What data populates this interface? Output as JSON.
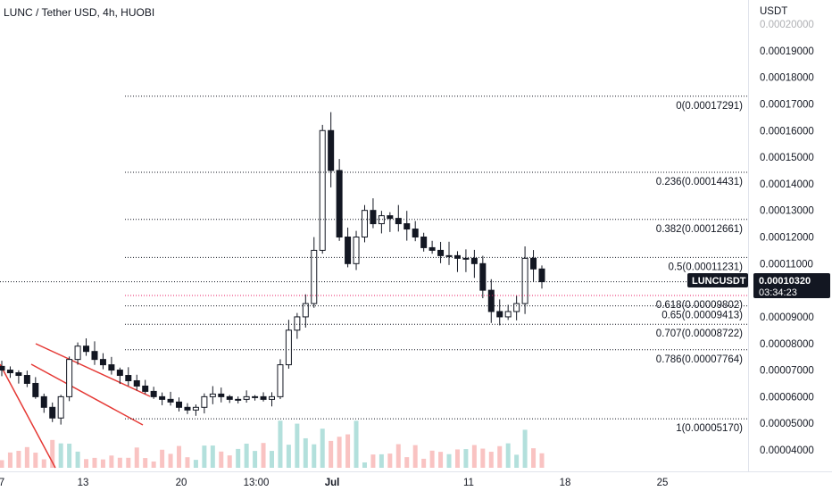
{
  "header": {
    "title": "LUNC / Tether USD, 4h, HUOBI"
  },
  "axis": {
    "currency": "USDT",
    "ticks": [
      "0.00020000",
      "0.00019000",
      "0.00018000",
      "0.00017000",
      "0.00016000",
      "0.00015000",
      "0.00014000",
      "0.00013000",
      "0.00012000",
      "0.00011000",
      "0.00010000",
      "0.00009000",
      "0.00008000",
      "0.00007000",
      "0.00006000",
      "0.00005000",
      "0.00004000"
    ],
    "x_labels": [
      "7",
      "13",
      "20",
      "13:00",
      "Jul",
      "11",
      "18",
      "25"
    ]
  },
  "price_badge": {
    "symbol": "LUNCUSDT",
    "price": "0.00010320",
    "countdown": "03:34:23"
  },
  "colors": {
    "accent_label_bg": "#131722",
    "up": "#26a69a",
    "down": "#ef5350",
    "fib_0618": "#e91e63",
    "channel": "#e53935"
  },
  "chart_data": {
    "type": "line",
    "title": "LUNC / Tether USD, 4h, HUOBI",
    "ylabel": "USDT",
    "ylim": [
      3.6e-05,
      0.0002
    ],
    "x_ticks": [
      "7",
      "13",
      "20",
      "13:00",
      "Jul",
      "11",
      "18",
      "25"
    ],
    "series": [
      {
        "values": [
          7e-05,
          6.9e-05,
          6.8e-05,
          6.5e-05,
          6e-05,
          5.6e-05,
          5.2e-05,
          6e-05,
          7.4e-05,
          7.9e-05,
          7.7e-05,
          7.4e-05,
          7.2e-05,
          7e-05,
          6.8e-05,
          6.6e-05,
          6.4e-05,
          6.2e-05,
          6e-05,
          5.9e-05,
          5.8e-05,
          5.6e-05,
          5.5e-05,
          5.6e-05,
          6e-05,
          6.1e-05,
          6e-05,
          5.9e-05,
          5.9e-05,
          6e-05,
          6e-05,
          5.9e-05,
          6e-05,
          7.2e-05,
          8.5e-05,
          9e-05,
          9.5e-05,
          0.000115,
          0.00016,
          0.000145,
          0.00012,
          0.00011,
          0.00012,
          0.00013,
          0.000125,
          0.000128,
          0.000127,
          0.000125,
          0.000123,
          0.00012,
          0.000116,
          0.000115,
          0.000113,
          0.000113,
          0.000112,
          0.000112,
          0.00011,
          0.0001,
          9.2e-05,
          9e-05,
          9.2e-05,
          9.5e-05,
          0.000112,
          0.000108,
          0.0001032
        ]
      }
    ],
    "fibonacci_levels": [
      {
        "label": "0(0.00017291)",
        "value": 0.00017291
      },
      {
        "label": "0.236(0.00014431)",
        "value": 0.00014431
      },
      {
        "label": "0.382(0.00012661)",
        "value": 0.00012661
      },
      {
        "label": "0.5(0.00011231)",
        "value": 0.00011231
      },
      {
        "label": "0.618(0.00009802)",
        "value": 9.802e-05
      },
      {
        "label": "0.65(0.00009413)",
        "value": 9.413e-05
      },
      {
        "label": "0.707(0.00008722)",
        "value": 8.722e-05
      },
      {
        "label": "0.786(0.00007764)",
        "value": 7.764e-05
      },
      {
        "label": "1(0.00005170)",
        "value": 5.17e-05
      }
    ],
    "last_price": 0.0001032
  }
}
